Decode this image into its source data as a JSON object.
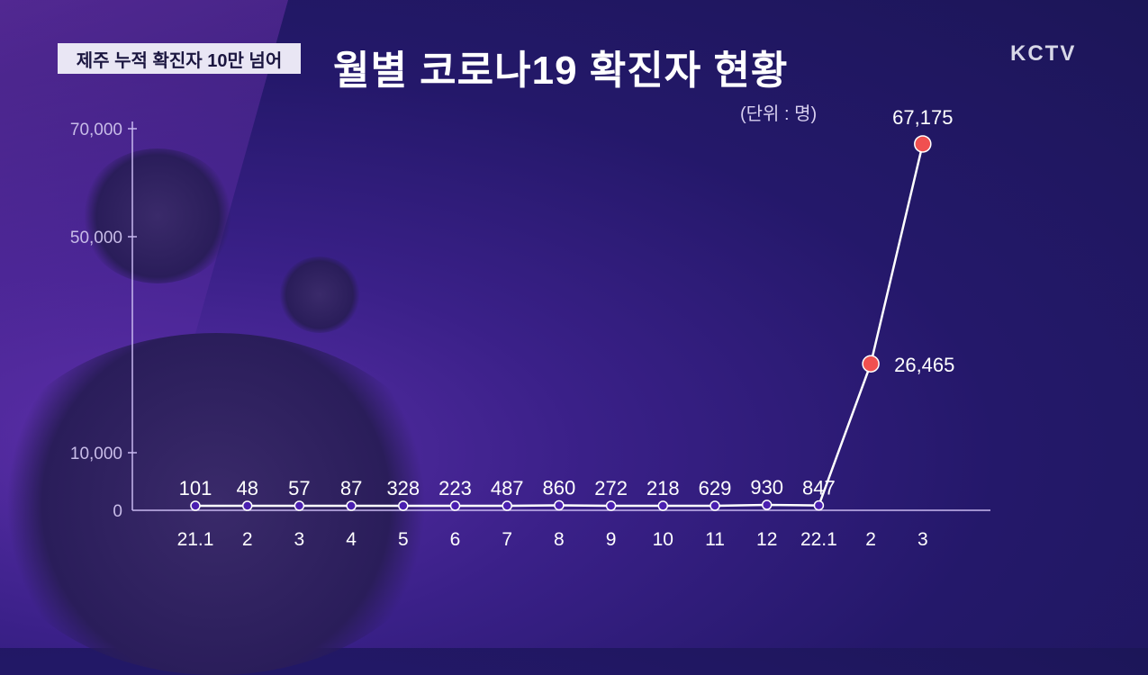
{
  "header": {
    "tag": "제주 누적 확진자 10만 넘어",
    "title": "월별 코로나19 확진자 현황",
    "unit": "(단위 : 명)",
    "logo": "KCTV"
  },
  "chart_data": {
    "type": "line",
    "title": "월별 코로나19 확진자 현황",
    "unit": "(단위 : 명)",
    "categories": [
      "21.1",
      "2",
      "3",
      "4",
      "5",
      "6",
      "7",
      "8",
      "9",
      "10",
      "11",
      "12",
      "22.1",
      "2",
      "3"
    ],
    "values": [
      101,
      48,
      57,
      87,
      328,
      223,
      487,
      860,
      272,
      218,
      629,
      930,
      847,
      26465,
      67175
    ],
    "value_labels": [
      "101",
      "48",
      "57",
      "87",
      "328",
      "223",
      "487",
      "860",
      "272",
      "218",
      "629",
      "930",
      "847",
      "26,465",
      "67,175"
    ],
    "yticks": [
      0,
      10000,
      50000,
      70000
    ],
    "ytick_labels": [
      "0",
      "10,000",
      "50,000",
      "70,000"
    ],
    "ylim": [
      0,
      70000
    ],
    "grid": false,
    "colors": {
      "line": "#ffffff",
      "point": "#4a1fb0",
      "highlight_point": "#f05050"
    }
  }
}
